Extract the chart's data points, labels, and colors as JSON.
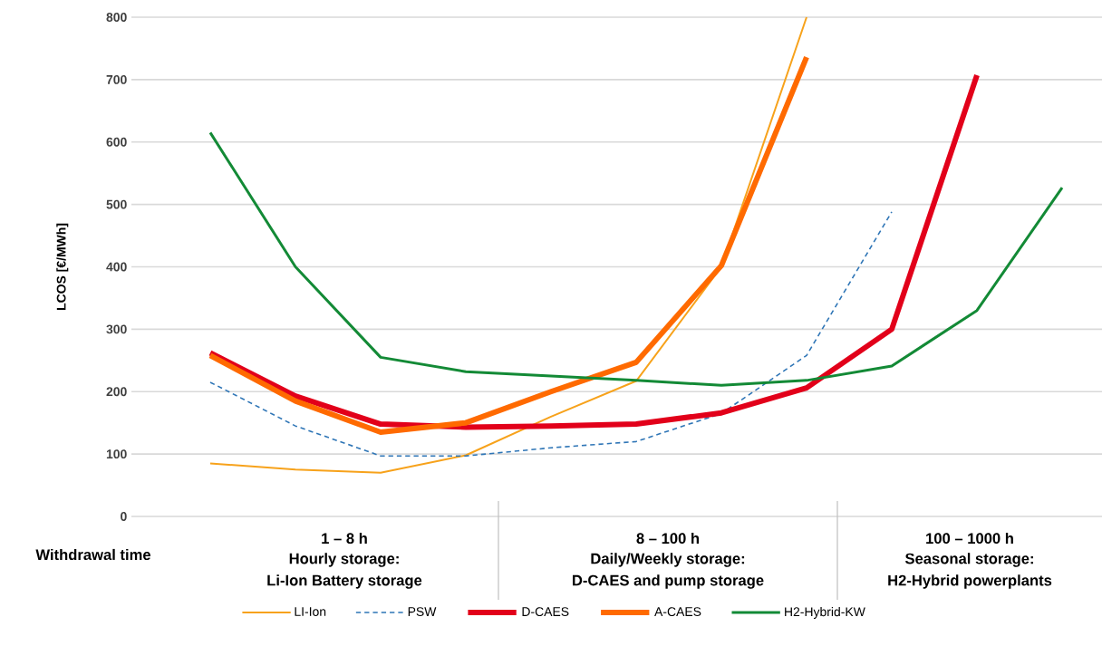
{
  "chart_data": {
    "type": "line",
    "xlabel": "Withdrawal time",
    "ylabel": "LCOS [€/MWh]",
    "categories": [
      null,
      null,
      null,
      null,
      null,
      null,
      null,
      null,
      null,
      null,
      null
    ],
    "ylim": [
      0,
      800
    ],
    "yticks": [
      0,
      100,
      200,
      300,
      400,
      500,
      600,
      700,
      800
    ],
    "grid": "y",
    "legend": "bottom",
    "marker": "none",
    "series": [
      {
        "name": "LI-Ion",
        "color": "#f7a21b",
        "line_style": "solid",
        "values": [
          85,
          75,
          70,
          98,
          160,
          217,
          400,
          800,
          null,
          null,
          null
        ]
      },
      {
        "name": "PSW",
        "color": "#2e75b6",
        "line_style": "dashed",
        "values": [
          215,
          145,
          97,
          97,
          110,
          120,
          165,
          258,
          488,
          null,
          null
        ]
      },
      {
        "name": "D-CAES",
        "color": "#e2001a",
        "line_style": "solid",
        "values": [
          262,
          193,
          148,
          143,
          145,
          148,
          166,
          206,
          300,
          707,
          null
        ]
      },
      {
        "name": "A-CAES",
        "color": "#ff6a00",
        "line_style": "solid",
        "values": [
          258,
          185,
          135,
          150,
          200,
          247,
          402,
          736,
          null,
          null,
          null
        ]
      },
      {
        "name": "H2-Hybrid-KW",
        "color": "#138a36",
        "line_style": "solid",
        "values": [
          615,
          400,
          255,
          232,
          225,
          218,
          210,
          218,
          241,
          330,
          527
        ]
      }
    ],
    "annotations": [
      "1 – 8 h",
      "Hourly storage:",
      "Li-Ion Battery storage",
      "8 – 100 h",
      "Daily/Weekly storage:",
      "D-CAES and pump storage",
      "100 – 1000 h",
      "Seasonal storage:",
      "H2-Hybrid powerplants"
    ]
  }
}
